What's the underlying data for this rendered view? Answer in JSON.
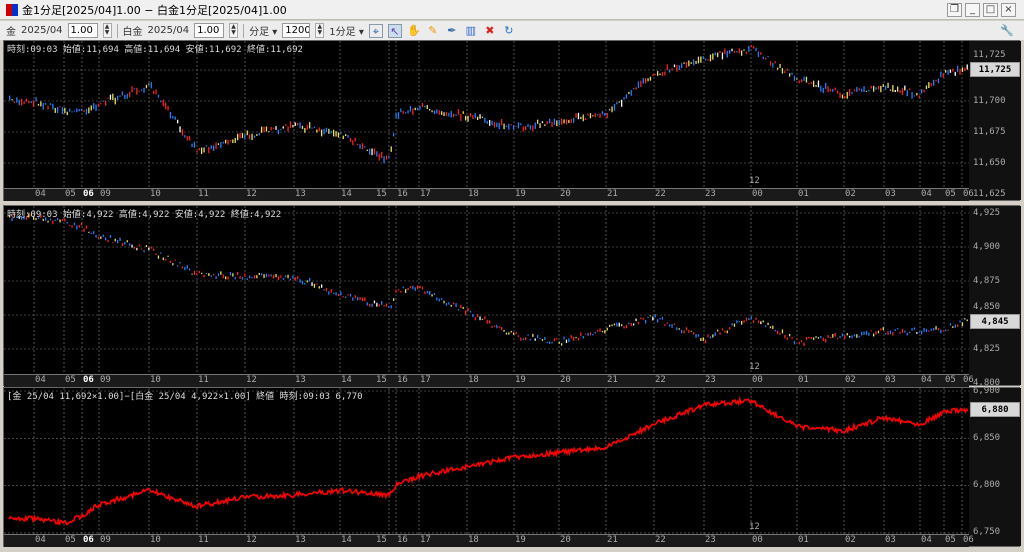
{
  "window": {
    "title": "金1分足[2025/04]1.00 − 白金1分足[2025/04]1.00",
    "controls": [
      "restore-icon",
      "minimize-icon",
      "maximize-icon",
      "close-icon"
    ]
  },
  "toolbar": {
    "symbol1": "金",
    "month1": "2025/04",
    "mult1": "1.00",
    "symbol2": "白金",
    "month2": "2025/04",
    "mult2": "1.00",
    "period_unit": "分足",
    "bars": "1200",
    "timeframe": "1分足",
    "icons": [
      "crosshair-icon",
      "pointer-icon",
      "hand-icon",
      "pencil-icon",
      "pen-icon",
      "bar-chart-icon",
      "delete-icon",
      "refresh-icon",
      "wrench-icon"
    ]
  },
  "colors": {
    "up": "#ff2020",
    "down": "#2080ff",
    "neutral": "#e8e060",
    "spread_line": "#ff0000",
    "grid": "#888888"
  },
  "x_labels": [
    "04",
    "05",
    "06",
    "09",
    "10",
    "11",
    "12",
    "13",
    "14",
    "15",
    "16",
    "17",
    "18",
    "19",
    "20",
    "21",
    "22",
    "23",
    "00",
    "01",
    "02",
    "03",
    "04",
    "05",
    "06"
  ],
  "day_marker": "12",
  "panels": [
    {
      "info": "時刻:09:03 始値:11,694 高値:11,694 安値:11,692 終値:11,692",
      "current": "11,725",
      "yticks": [
        "11,725",
        "11,700",
        "11,675",
        "11,650",
        "11,625"
      ]
    },
    {
      "info": "時刻:09:03 始値:4,922 高値:4,922 安値:4,922 終値:4,922",
      "current": "4,845",
      "yticks": [
        "4,925",
        "4,900",
        "4,875",
        "4,850",
        "4,825",
        "4,800"
      ]
    },
    {
      "info": "[金 25/04 11,692×1.00]−[白金 25/04 4,922×1.00] 終値 時刻:09:03 6,770",
      "current": "6,880",
      "yticks": [
        "6,900",
        "6,850",
        "6,800",
        "6,750"
      ]
    }
  ],
  "chart_data": [
    {
      "type": "candlestick",
      "ylim": [
        11625,
        11745
      ],
      "x": [
        "04",
        "05",
        "06",
        "09",
        "10",
        "11",
        "12",
        "13",
        "14",
        "15",
        "16",
        "17",
        "18",
        "19",
        "20",
        "21",
        "22",
        "23",
        "00",
        "01",
        "02",
        "03",
        "04",
        "05",
        "06"
      ],
      "values": [
        11700,
        11692,
        11692,
        11698,
        11712,
        11660,
        11672,
        11680,
        11674,
        11652,
        11690,
        11695,
        11688,
        11678,
        11684,
        11690,
        11722,
        11735,
        11742,
        11718,
        11705,
        11712,
        11705,
        11722,
        11725
      ]
    },
    {
      "type": "candlestick",
      "ylim": [
        4.8,
        4.925
      ],
      "x": [
        "04",
        "05",
        "06",
        "09",
        "10",
        "11",
        "12",
        "13",
        "14",
        "15",
        "16",
        "17",
        "18",
        "19",
        "20",
        "21",
        "22",
        "23",
        "00",
        "01",
        "02",
        "03",
        "04",
        "05",
        "06"
      ],
      "values": [
        4.922,
        4.918,
        4.915,
        4.908,
        4.898,
        4.88,
        4.878,
        4.878,
        4.865,
        4.855,
        4.868,
        4.87,
        4.852,
        4.835,
        4.83,
        4.84,
        4.848,
        4.832,
        4.848,
        4.83,
        4.835,
        4.838,
        4.838,
        4.84,
        4.845
      ]
    },
    {
      "type": "line",
      "ylim": [
        6750,
        6900
      ],
      "x": [
        "04",
        "05",
        "06",
        "09",
        "10",
        "11",
        "12",
        "13",
        "14",
        "15",
        "16",
        "17",
        "18",
        "19",
        "20",
        "21",
        "22",
        "23",
        "00",
        "01",
        "02",
        "03",
        "04",
        "05",
        "06"
      ],
      "values": [
        6765,
        6760,
        6768,
        6780,
        6795,
        6778,
        6788,
        6790,
        6795,
        6790,
        6800,
        6810,
        6820,
        6830,
        6835,
        6840,
        6865,
        6885,
        6890,
        6862,
        6858,
        6872,
        6865,
        6878,
        6880
      ]
    }
  ]
}
